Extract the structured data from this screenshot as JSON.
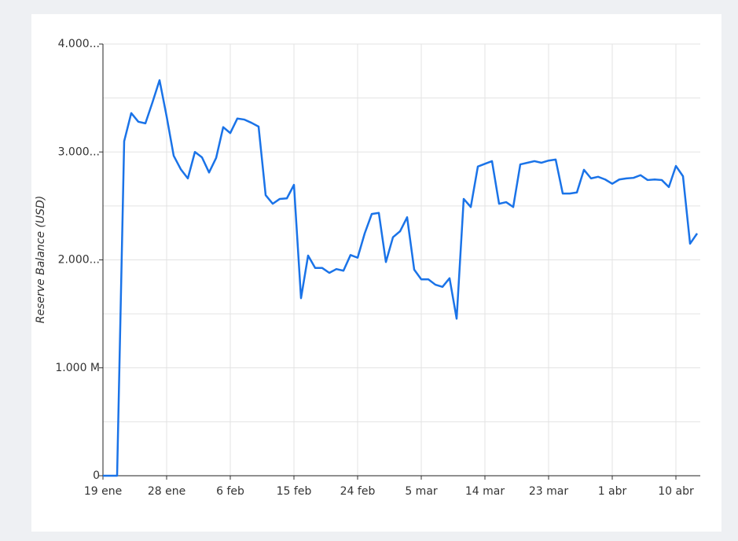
{
  "chart_data": {
    "type": "line",
    "y_label": "Reserve Balance (USD)",
    "categories": [
      "19 ene",
      null,
      null,
      null,
      null,
      null,
      null,
      null,
      null,
      "28 ene",
      null,
      null,
      null,
      null,
      null,
      null,
      null,
      null,
      "6 feb",
      null,
      null,
      null,
      null,
      null,
      null,
      null,
      null,
      "15 feb",
      null,
      null,
      null,
      null,
      null,
      null,
      null,
      null,
      "24 feb",
      null,
      null,
      null,
      null,
      null,
      null,
      null,
      null,
      "5 mar",
      null,
      null,
      null,
      null,
      null,
      null,
      null,
      null,
      "14 mar",
      null,
      null,
      null,
      null,
      null,
      null,
      null,
      null,
      "23 mar",
      null,
      null,
      null,
      null,
      null,
      null,
      null,
      null,
      "1 abr",
      null,
      null,
      null,
      null,
      null,
      null,
      null,
      null,
      "10 abr",
      null,
      null,
      null
    ],
    "values": [
      0,
      0,
      0,
      3100,
      3360,
      3280,
      3265,
      3460,
      3665,
      3330,
      2965,
      2840,
      2755,
      3000,
      2950,
      2810,
      2945,
      3230,
      3175,
      3310,
      3300,
      3270,
      3235,
      2600,
      2520,
      2565,
      2570,
      2695,
      1645,
      2040,
      1925,
      1925,
      1880,
      1915,
      1900,
      2045,
      2020,
      2245,
      2425,
      2435,
      1980,
      2210,
      2265,
      2395,
      1910,
      1820,
      1820,
      1770,
      1750,
      1830,
      1455,
      2565,
      2490,
      2865,
      2890,
      2915,
      2520,
      2535,
      2490,
      2885,
      2900,
      2915,
      2900,
      2920,
      2930,
      2615,
      2615,
      2625,
      2835,
      2755,
      2770,
      2745,
      2705,
      2745,
      2755,
      2760,
      2785,
      2740,
      2745,
      2740,
      2675,
      2870,
      2775,
      2150,
      2245
    ],
    "color": "#1a73e8",
    "ylim": [
      0,
      4000
    ],
    "yticks": [
      0,
      {
        "value": 1000,
        "label": "1.000 M"
      },
      {
        "value": 2000,
        "label": "2.000..."
      },
      {
        "value": 3000,
        "label": "3.000..."
      },
      {
        "value": 4000,
        "label": "4.000..."
      }
    ],
    "minor_yticks": [
      500,
      1500,
      2500,
      3500
    ],
    "grid": true
  }
}
